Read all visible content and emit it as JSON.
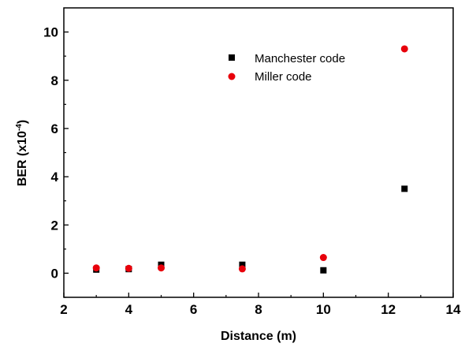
{
  "chart_data": {
    "type": "scatter",
    "xlabel": "Distance (m)",
    "ylabel_main": "BER (x10",
    "ylabel_exp": "-4",
    "ylabel_close": ")",
    "xlim": [
      2,
      14
    ],
    "ylim": [
      -1,
      11
    ],
    "x_ticks": [
      2,
      4,
      6,
      8,
      10,
      12,
      14
    ],
    "y_ticks": [
      0,
      2,
      4,
      6,
      8,
      10
    ],
    "grid": false,
    "legend_position": "top-right",
    "series": [
      {
        "name": "Manchester code",
        "marker": "square",
        "color": "#000000",
        "x": [
          3,
          4,
          5,
          7.5,
          10,
          12.5
        ],
        "y": [
          0.15,
          0.17,
          0.35,
          0.35,
          0.12,
          3.5
        ]
      },
      {
        "name": "Miller code",
        "marker": "circle",
        "color": "#e8000b",
        "x": [
          3,
          4,
          5,
          7.5,
          10,
          12.5
        ],
        "y": [
          0.22,
          0.2,
          0.22,
          0.18,
          0.65,
          9.3
        ]
      }
    ]
  }
}
